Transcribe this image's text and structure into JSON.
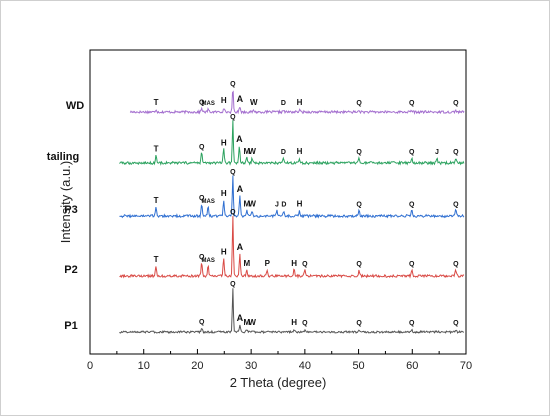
{
  "chart_data": {
    "type": "line",
    "xlabel": "2 Theta (degree)",
    "ylabel": "Intensity (a.u.)",
    "xlim": [
      0,
      70
    ],
    "xticks": [
      0,
      10,
      20,
      30,
      40,
      50,
      60,
      70
    ],
    "ytick_labels": false,
    "grid": false,
    "legend": "none",
    "series": [
      {
        "name": "WD",
        "color": "#a46fcf",
        "peaks": [
          {
            "label": "T",
            "x": 12.3
          },
          {
            "label": "Q",
            "x": 20.8
          },
          {
            "label": "MAS",
            "x": 22.0
          },
          {
            "label": "H",
            "x": 24.9
          },
          {
            "label": "Q",
            "x": 26.6
          },
          {
            "label": "A",
            "x": 27.9
          },
          {
            "label": "W",
            "x": 30.5
          },
          {
            "label": "D",
            "x": 36.0
          },
          {
            "label": "H",
            "x": 39.0
          },
          {
            "label": "Q",
            "x": 50.1
          },
          {
            "label": "Q",
            "x": 59.9
          },
          {
            "label": "Q",
            "x": 68.1
          }
        ]
      },
      {
        "name": "tailing",
        "color": "#2ca25f",
        "peaks": [
          {
            "label": "T",
            "x": 12.3
          },
          {
            "label": "Q",
            "x": 20.8
          },
          {
            "label": "H",
            "x": 24.9
          },
          {
            "label": "Q",
            "x": 26.6
          },
          {
            "label": "A",
            "x": 27.8
          },
          {
            "label": "M",
            "x": 29.2
          },
          {
            "label": "W",
            "x": 30.2
          },
          {
            "label": "D",
            "x": 36.0
          },
          {
            "label": "H",
            "x": 39.0
          },
          {
            "label": "Q",
            "x": 50.1
          },
          {
            "label": "Q",
            "x": 59.9
          },
          {
            "label": "J",
            "x": 64.6
          },
          {
            "label": "Q",
            "x": 68.1
          }
        ]
      },
      {
        "name": "P3",
        "color": "#2f6fd1",
        "peaks": [
          {
            "label": "T",
            "x": 12.3
          },
          {
            "label": "Q",
            "x": 20.8
          },
          {
            "label": "MAS",
            "x": 22.0
          },
          {
            "label": "H",
            "x": 24.9
          },
          {
            "label": "Q",
            "x": 26.6
          },
          {
            "label": "A",
            "x": 27.9
          },
          {
            "label": "M",
            "x": 29.2
          },
          {
            "label": "W",
            "x": 30.2
          },
          {
            "label": "J",
            "x": 34.8
          },
          {
            "label": "D",
            "x": 36.1
          },
          {
            "label": "H",
            "x": 39.0
          },
          {
            "label": "Q",
            "x": 50.1
          },
          {
            "label": "Q",
            "x": 59.9
          },
          {
            "label": "Q",
            "x": 68.1
          }
        ]
      },
      {
        "name": "P2",
        "color": "#d94a45",
        "peaks": [
          {
            "label": "T",
            "x": 12.3
          },
          {
            "label": "Q",
            "x": 20.8
          },
          {
            "label": "MAS",
            "x": 22.0
          },
          {
            "label": "H",
            "x": 24.9
          },
          {
            "label": "Q",
            "x": 26.6
          },
          {
            "label": "A",
            "x": 27.9
          },
          {
            "label": "M",
            "x": 29.2
          },
          {
            "label": "P",
            "x": 33.0
          },
          {
            "label": "H",
            "x": 38.0
          },
          {
            "label": "Q",
            "x": 40.0
          },
          {
            "label": "Q",
            "x": 50.1
          },
          {
            "label": "Q",
            "x": 59.9
          },
          {
            "label": "Q",
            "x": 68.1
          }
        ]
      },
      {
        "name": "P1",
        "color": "#555555",
        "peaks": [
          {
            "label": "Q",
            "x": 20.8
          },
          {
            "label": "Q",
            "x": 26.6
          },
          {
            "label": "A",
            "x": 27.9
          },
          {
            "label": "M",
            "x": 29.2
          },
          {
            "label": "W",
            "x": 30.2
          },
          {
            "label": "H",
            "x": 38.0
          },
          {
            "label": "Q",
            "x": 40.0
          },
          {
            "label": "Q",
            "x": 50.1
          },
          {
            "label": "Q",
            "x": 59.9
          },
          {
            "label": "Q",
            "x": 68.1
          }
        ]
      }
    ]
  }
}
